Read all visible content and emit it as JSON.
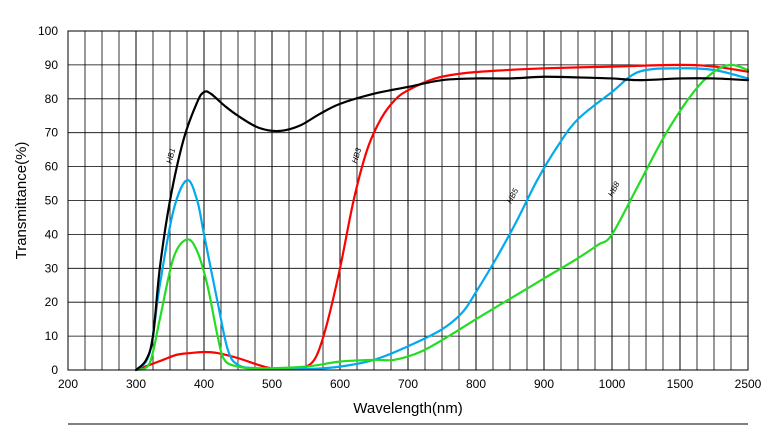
{
  "chart_data": {
    "type": "line",
    "xlabel": "Wavelength(nm)",
    "ylabel": "Transmittance(%)",
    "x_tick_labels": [
      "200",
      "300",
      "400",
      "500",
      "600",
      "700",
      "800",
      "900",
      "1000",
      "1500",
      "2500"
    ],
    "y_ticks": [
      0,
      10,
      20,
      30,
      40,
      50,
      60,
      70,
      80,
      90,
      100
    ],
    "ylim": [
      0,
      100
    ],
    "x_scale": "piecewise: 200-1000 linear, 1000-2500 compressed",
    "grid": true,
    "legend": "inline labels on curves",
    "series": [
      {
        "name": "HB1",
        "color": "#000000",
        "points": [
          [
            300,
            0
          ],
          [
            315,
            3
          ],
          [
            325,
            10
          ],
          [
            335,
            30
          ],
          [
            350,
            50
          ],
          [
            370,
            68
          ],
          [
            390,
            79
          ],
          [
            400,
            82
          ],
          [
            410,
            81.5
          ],
          [
            430,
            78
          ],
          [
            450,
            75
          ],
          [
            480,
            71.5
          ],
          [
            510,
            70.5
          ],
          [
            540,
            72
          ],
          [
            570,
            75.5
          ],
          [
            600,
            78.5
          ],
          [
            650,
            81.5
          ],
          [
            700,
            83.5
          ],
          [
            750,
            85.5
          ],
          [
            800,
            86
          ],
          [
            850,
            86
          ],
          [
            900,
            86.5
          ],
          [
            950,
            86.3
          ],
          [
            1000,
            86
          ],
          [
            1200,
            85.5
          ],
          [
            1500,
            86
          ],
          [
            2000,
            86
          ],
          [
            2500,
            85.5
          ]
        ]
      },
      {
        "name": "HB3",
        "color": "#ff0000",
        "points": [
          [
            300,
            0
          ],
          [
            320,
            1.5
          ],
          [
            340,
            3
          ],
          [
            360,
            4.5
          ],
          [
            380,
            5
          ],
          [
            400,
            5.3
          ],
          [
            420,
            5
          ],
          [
            450,
            3.5
          ],
          [
            480,
            1.5
          ],
          [
            500,
            0.5
          ],
          [
            530,
            0.3
          ],
          [
            550,
            1
          ],
          [
            565,
            4
          ],
          [
            580,
            13
          ],
          [
            600,
            30
          ],
          [
            620,
            50
          ],
          [
            640,
            65
          ],
          [
            660,
            74
          ],
          [
            680,
            79.5
          ],
          [
            700,
            82.5
          ],
          [
            740,
            86
          ],
          [
            780,
            87.5
          ],
          [
            830,
            88.3
          ],
          [
            900,
            89
          ],
          [
            1000,
            89.5
          ],
          [
            1500,
            90
          ],
          [
            2000,
            89.5
          ],
          [
            2500,
            88
          ]
        ]
      },
      {
        "name": "HB5",
        "color": "#00aaee",
        "points": [
          [
            300,
            0
          ],
          [
            320,
            5
          ],
          [
            335,
            25
          ],
          [
            355,
            47
          ],
          [
            375,
            56
          ],
          [
            390,
            50
          ],
          [
            400,
            40
          ],
          [
            420,
            20
          ],
          [
            435,
            6
          ],
          [
            450,
            1.5
          ],
          [
            480,
            0.5
          ],
          [
            550,
            0.3
          ],
          [
            600,
            1
          ],
          [
            650,
            3
          ],
          [
            700,
            7
          ],
          [
            750,
            12
          ],
          [
            780,
            17
          ],
          [
            800,
            23
          ],
          [
            830,
            33
          ],
          [
            860,
            44
          ],
          [
            890,
            56
          ],
          [
            920,
            66
          ],
          [
            950,
            74
          ],
          [
            1000,
            82
          ],
          [
            1200,
            88
          ],
          [
            1500,
            89
          ],
          [
            2000,
            88.5
          ],
          [
            2500,
            86
          ]
        ]
      },
      {
        "name": "HB8",
        "color": "#22dd22",
        "points": [
          [
            300,
            0
          ],
          [
            320,
            2
          ],
          [
            335,
            15
          ],
          [
            355,
            33
          ],
          [
            375,
            38.5
          ],
          [
            390,
            35
          ],
          [
            405,
            25
          ],
          [
            420,
            10
          ],
          [
            430,
            3
          ],
          [
            450,
            1
          ],
          [
            480,
            0.5
          ],
          [
            550,
            1
          ],
          [
            600,
            2.5
          ],
          [
            650,
            3
          ],
          [
            680,
            3
          ],
          [
            720,
            5.5
          ],
          [
            760,
            10
          ],
          [
            800,
            15
          ],
          [
            850,
            21
          ],
          [
            900,
            27
          ],
          [
            950,
            33
          ],
          [
            980,
            37
          ],
          [
            1000,
            40
          ],
          [
            1200,
            55
          ],
          [
            1400,
            70
          ],
          [
            1700,
            82
          ],
          [
            2000,
            88
          ],
          [
            2250,
            90
          ],
          [
            2500,
            88.5
          ]
        ]
      }
    ]
  }
}
